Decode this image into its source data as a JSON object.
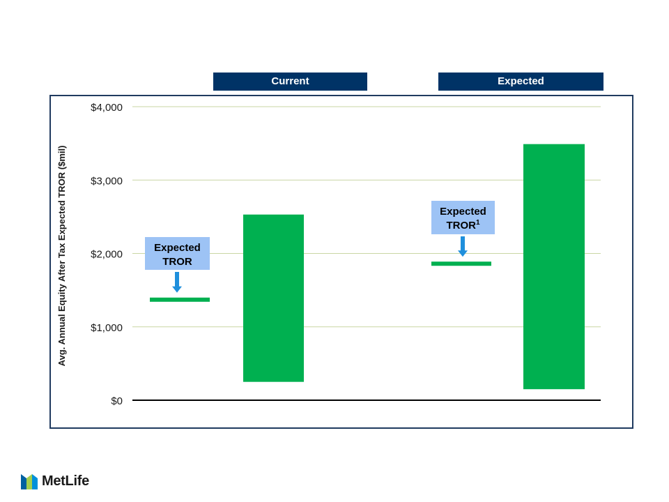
{
  "header": {
    "current_label": "Current",
    "expected_label": "Expected"
  },
  "chart_data": {
    "type": "bar",
    "ylabel": "Avg. Annual Equity After Tax Expected TROR ($mil)",
    "ylim": [
      0,
      4000
    ],
    "yticks": [
      {
        "value": 0,
        "label": "$0"
      },
      {
        "value": 1000,
        "label": "$1,000"
      },
      {
        "value": 2000,
        "label": "$2,000"
      },
      {
        "value": 3000,
        "label": "$3,000"
      },
      {
        "value": 4000,
        "label": "$4,000"
      }
    ],
    "groups": [
      {
        "name": "Current",
        "expected_tror": 1370,
        "range": [
          250,
          2530
        ],
        "callout_lines": [
          "Expected",
          "TROR"
        ],
        "callout_sup": ""
      },
      {
        "name": "Expected",
        "expected_tror": 1860,
        "range": [
          150,
          3490
        ],
        "callout_lines": [
          "Expected",
          "TROR"
        ],
        "callout_sup": "1"
      }
    ],
    "colors": {
      "bar": "#00b050",
      "gridline": "#c9d6a3",
      "axis": "#000000",
      "callout_bg": "#9dc3f5",
      "arrow": "#1f8fdc"
    }
  },
  "footer": {
    "logo_text": "MetLife",
    "logo_colors": [
      "#0061a0",
      "#a4ce4e",
      "#0090da"
    ]
  }
}
